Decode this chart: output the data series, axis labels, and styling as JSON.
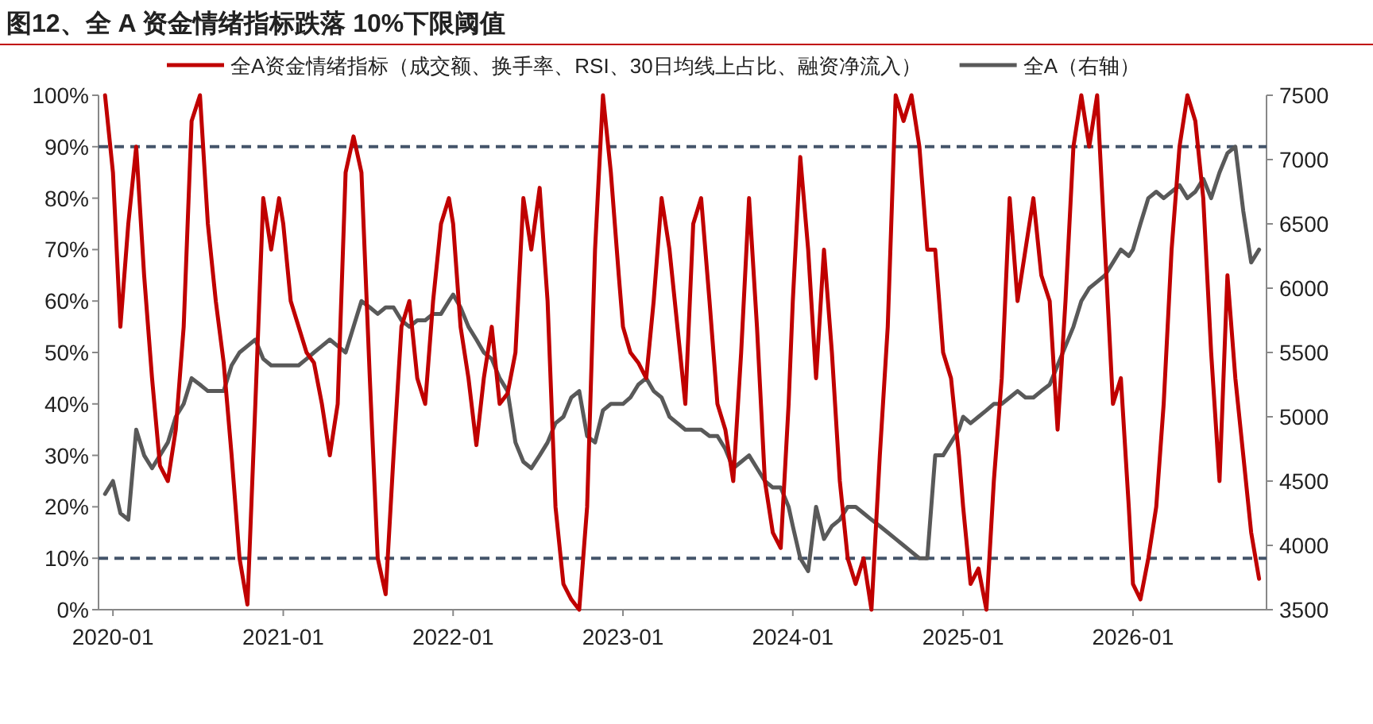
{
  "chart_data": {
    "type": "line",
    "title": "图12、全 A 资金情绪指标跌落 10%下限阈值",
    "x": [
      "2019-12-15",
      "2020-01-01",
      "2020-01-17",
      "2020-02-03",
      "2020-02-20",
      "2020-03-08",
      "2020-03-25",
      "2020-04-11",
      "2020-04-28",
      "2020-05-15",
      "2020-06-01",
      "2020-06-18",
      "2020-07-06",
      "2020-07-23",
      "2020-08-09",
      "2020-08-26",
      "2020-09-12",
      "2020-09-29",
      "2020-10-16",
      "2020-11-02",
      "2020-11-19",
      "2020-12-06",
      "2020-12-23",
      "2021-01-01",
      "2021-01-17",
      "2021-02-03",
      "2021-02-20",
      "2021-03-08",
      "2021-03-25",
      "2021-04-11",
      "2021-04-28",
      "2021-05-15",
      "2021-06-01",
      "2021-06-18",
      "2021-07-06",
      "2021-07-23",
      "2021-08-09",
      "2021-08-26",
      "2021-09-12",
      "2021-09-29",
      "2021-10-16",
      "2021-11-02",
      "2021-11-19",
      "2021-12-06",
      "2021-12-23",
      "2022-01-01",
      "2022-01-17",
      "2022-02-03",
      "2022-02-20",
      "2022-03-08",
      "2022-03-25",
      "2022-04-11",
      "2022-04-28",
      "2022-05-15",
      "2022-06-01",
      "2022-06-18",
      "2022-07-06",
      "2022-07-23",
      "2022-08-09",
      "2022-08-26",
      "2022-09-12",
      "2022-09-29",
      "2022-10-16",
      "2022-11-02",
      "2022-11-19",
      "2022-12-06",
      "2022-12-23",
      "2023-01-01",
      "2023-01-17",
      "2023-02-03",
      "2023-02-20",
      "2023-03-08",
      "2023-03-25",
      "2023-04-11",
      "2023-04-28",
      "2023-05-15",
      "2023-06-01",
      "2023-06-18",
      "2023-07-06",
      "2023-07-23",
      "2023-08-09",
      "2023-08-26",
      "2023-09-12",
      "2023-09-29",
      "2023-10-16",
      "2023-11-02",
      "2023-11-19",
      "2023-12-06",
      "2023-12-23",
      "2024-01-01",
      "2024-01-17",
      "2024-02-03",
      "2024-02-20",
      "2024-03-08",
      "2024-03-25",
      "2024-04-11",
      "2024-04-28",
      "2024-05-15",
      "2024-06-01",
      "2024-06-18",
      "2024-07-06",
      "2024-07-23",
      "2024-08-09",
      "2024-08-26",
      "2024-09-12",
      "2024-09-29",
      "2024-10-16",
      "2024-11-02",
      "2024-11-19",
      "2024-12-06",
      "2024-12-23",
      "2025-01-01",
      "2025-01-17",
      "2025-02-03",
      "2025-02-20",
      "2025-03-08",
      "2025-03-25",
      "2025-04-11",
      "2025-04-28",
      "2025-05-15",
      "2025-06-01",
      "2025-06-18",
      "2025-07-06",
      "2025-07-23",
      "2025-08-09",
      "2025-08-26",
      "2025-09-12",
      "2025-09-29",
      "2025-10-16",
      "2025-11-02",
      "2025-11-19",
      "2025-12-06",
      "2025-12-23",
      "2026-01-01",
      "2026-01-17",
      "2026-02-03",
      "2026-02-20",
      "2026-03-08",
      "2026-03-25",
      "2026-04-11",
      "2026-04-28",
      "2026-05-15",
      "2026-06-01",
      "2026-06-18",
      "2026-07-06",
      "2026-07-23",
      "2026-08-09",
      "2026-08-26",
      "2026-09-12",
      "2026-09-29"
    ],
    "series": [
      {
        "name": "全A资金情绪指标（成交额、换手率、RSI、30日均线上占比、融资净流入）",
        "color": "#c00000",
        "values": [
          100,
          85,
          55,
          75,
          90,
          65,
          45,
          28,
          25,
          35,
          55,
          95,
          100,
          75,
          60,
          48,
          30,
          10,
          1,
          40,
          80,
          70,
          80,
          75,
          60,
          55,
          50,
          48,
          40,
          30,
          40,
          85,
          92,
          85,
          45,
          10,
          3,
          30,
          55,
          60,
          45,
          40,
          60,
          75,
          80,
          75,
          55,
          45,
          32,
          45,
          55,
          40,
          42,
          50,
          80,
          70,
          82,
          60,
          20,
          5,
          2,
          0,
          20,
          70,
          100,
          85,
          65,
          55,
          50,
          48,
          45,
          60,
          80,
          70,
          55,
          40,
          75,
          80,
          60,
          40,
          35,
          25,
          50,
          80,
          55,
          25,
          15,
          12,
          40,
          60,
          88,
          70,
          45,
          70,
          50,
          25,
          10,
          5,
          10,
          0,
          30,
          55,
          100,
          95,
          100,
          90,
          70,
          70,
          50,
          45,
          30,
          20,
          5,
          8,
          0,
          25,
          45,
          80,
          60,
          70,
          80,
          65,
          60,
          35,
          60,
          90,
          100,
          90,
          100,
          70,
          40,
          45,
          20,
          5,
          2,
          10,
          20,
          40,
          70,
          90,
          100,
          95,
          80,
          50,
          25,
          65,
          45,
          30,
          15,
          6
        ]
      },
      {
        "name": "全A（右轴）",
        "color": "#595959",
        "axis": "y2",
        "values": [
          4400,
          4500,
          4250,
          4200,
          4900,
          4700,
          4600,
          4700,
          4800,
          5000,
          5100,
          5300,
          5250,
          5200,
          5200,
          5200,
          5400,
          5500,
          5550,
          5600,
          5450,
          5400,
          5400,
          5400,
          5400,
          5400,
          5450,
          5500,
          5550,
          5600,
          5550,
          5500,
          5700,
          5900,
          5850,
          5800,
          5850,
          5850,
          5750,
          5700,
          5750,
          5750,
          5800,
          5800,
          5900,
          5950,
          5850,
          5700,
          5600,
          5500,
          5450,
          5300,
          5200,
          4800,
          4650,
          4600,
          4700,
          4800,
          4950,
          5000,
          5150,
          5200,
          4850,
          4800,
          5050,
          5100,
          5100,
          5100,
          5150,
          5250,
          5300,
          5200,
          5150,
          5000,
          4950,
          4900,
          4900,
          4900,
          4850,
          4850,
          4750,
          4600,
          4650,
          4700,
          4600,
          4500,
          4450,
          4450,
          4300,
          4150,
          3900,
          3800,
          4300,
          4050,
          4150,
          4200,
          4300,
          4300,
          4250,
          4200,
          4150,
          4100,
          4050,
          4000,
          3950,
          3900,
          3900,
          4700,
          4700,
          4800,
          4900,
          5000,
          4950,
          5000,
          5050,
          5100,
          5100,
          5150,
          5200,
          5150,
          5150,
          5200,
          5250,
          5400,
          5550,
          5700,
          5900,
          6000,
          6050,
          6100,
          6200,
          6300,
          6250,
          6300,
          6500,
          6700,
          6750,
          6700,
          6750,
          6800,
          6700,
          6750,
          6850,
          6700,
          6900,
          7050,
          7100,
          6600,
          6200,
          6300
        ]
      }
    ],
    "xlim": [
      "2019-12-01",
      "2026-10-15"
    ],
    "xticks": [
      {
        "value": "2020-01",
        "label": "2020-01"
      },
      {
        "value": "2021-01",
        "label": "2021-01"
      },
      {
        "value": "2022-01",
        "label": "2022-01"
      },
      {
        "value": "2023-01",
        "label": "2023-01"
      },
      {
        "value": "2024-01",
        "label": "2024-01"
      },
      {
        "value": "2025-01",
        "label": "2025-01"
      },
      {
        "value": "2026-01",
        "label": "2026-01"
      }
    ],
    "ylim": [
      0,
      100
    ],
    "yticks": [
      {
        "value": 0,
        "label": "0%"
      },
      {
        "value": 10,
        "label": "10%"
      },
      {
        "value": 20,
        "label": "20%"
      },
      {
        "value": 30,
        "label": "30%"
      },
      {
        "value": 40,
        "label": "40%"
      },
      {
        "value": 50,
        "label": "50%"
      },
      {
        "value": 60,
        "label": "60%"
      },
      {
        "value": 70,
        "label": "70%"
      },
      {
        "value": 80,
        "label": "80%"
      },
      {
        "value": 90,
        "label": "90%"
      },
      {
        "value": 100,
        "label": "100%"
      }
    ],
    "y2lim": [
      3500,
      7500
    ],
    "y2ticks": [
      3500,
      4000,
      4500,
      5000,
      5500,
      6000,
      6500,
      7000,
      7500
    ],
    "ref_lines": [
      {
        "axis": "y",
        "value": 90,
        "color": "#44546a",
        "line_style": "dashed"
      },
      {
        "axis": "y",
        "value": 10,
        "color": "#44546a",
        "line_style": "dashed"
      }
    ],
    "legend": "top",
    "grid": false
  }
}
